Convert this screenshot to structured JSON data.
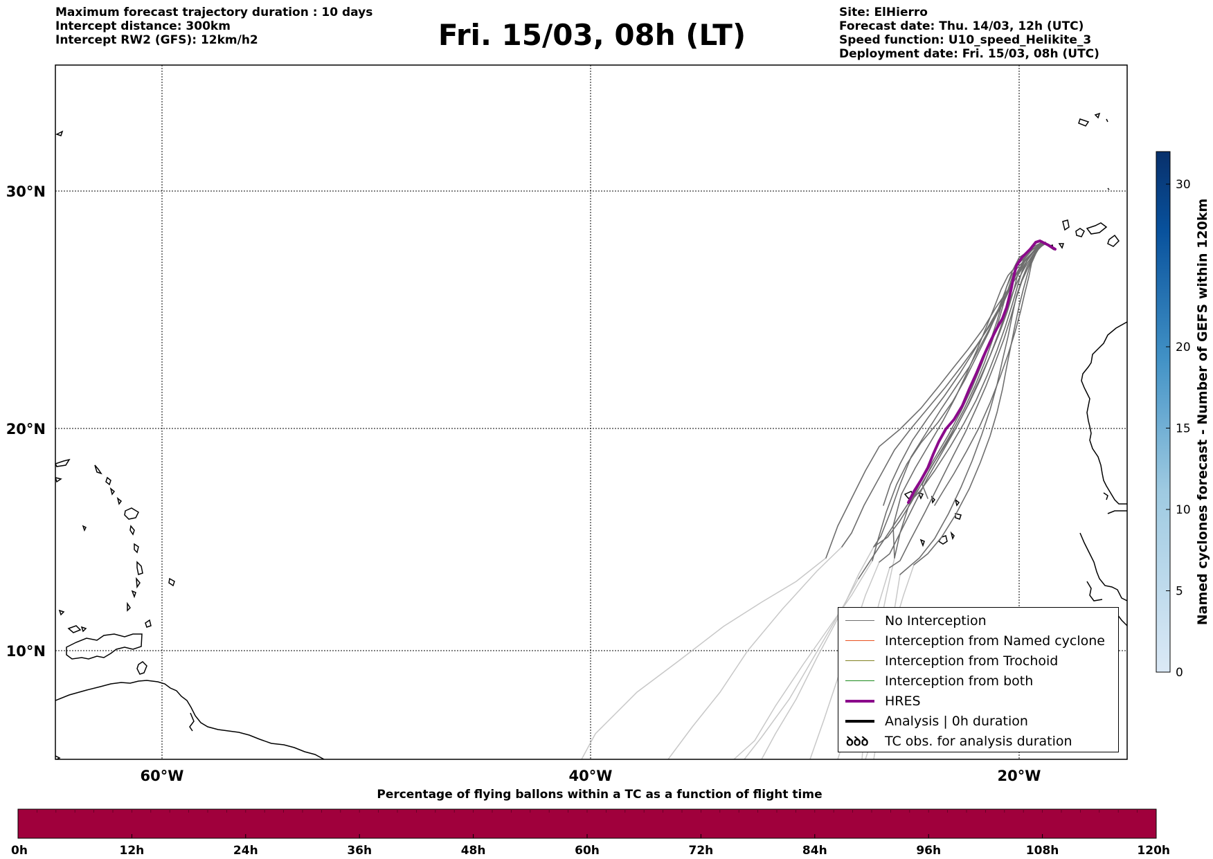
{
  "header": {
    "left_lines": [
      "Maximum forecast trajectory duration : 10 days",
      "Intercept distance: 300km",
      "Intercept RW2 (GFS):  12km/h2"
    ],
    "title": "Fri. 15/03, 08h (LT)",
    "right_lines": [
      "Site: ElHierro",
      "Forecast date: Thu. 14/03, 12h (UTC)",
      "Speed function: U10_speed_Helikite_3",
      "Deployment date: Fri. 15/03, 08h (UTC)"
    ]
  },
  "map": {
    "lat_labels": [
      "30°N",
      "20°N",
      "10°N"
    ],
    "lon_labels": [
      "60°W",
      "40°W",
      "20°W"
    ],
    "colors": {
      "trajectory": "#6e6e6e",
      "faded_trajectory": "#c8c8c8",
      "hres": "#8b0a8b"
    }
  },
  "legend": {
    "items": [
      {
        "label": "No Interception",
        "color": "#6e6e6e",
        "width": 1.5
      },
      {
        "label": "Interception from Named cyclone",
        "color": "#e8501e",
        "width": 1.5
      },
      {
        "label": "Interception from Trochoid",
        "color": "#808020",
        "width": 1.5
      },
      {
        "label": "Interception from both",
        "color": "#1a8a1a",
        "width": 1.5
      },
      {
        "label": "HRES",
        "color": "#8b0a8b",
        "width": 4
      },
      {
        "label": "Analysis | 0h duration",
        "color": "#000000",
        "width": 4
      },
      {
        "label": "TC obs. for analysis duration",
        "glyph": "ꝺꝺꝺ"
      }
    ]
  },
  "colorbar_right": {
    "title": "Named cyclones forecast - Number of GEFS within 120km",
    "ticks": [
      "0",
      "5",
      "10",
      "15",
      "20",
      "30"
    ],
    "min": 0,
    "max": 32
  },
  "colorbar_bottom": {
    "title": "Percentage of flying ballons within a TC as a function of flight time",
    "ticks": [
      "0h",
      "12h",
      "24h",
      "36h",
      "48h",
      "60h",
      "72h",
      "84h",
      "96h",
      "108h",
      "120h"
    ],
    "fill_color": "#a0003c"
  }
}
